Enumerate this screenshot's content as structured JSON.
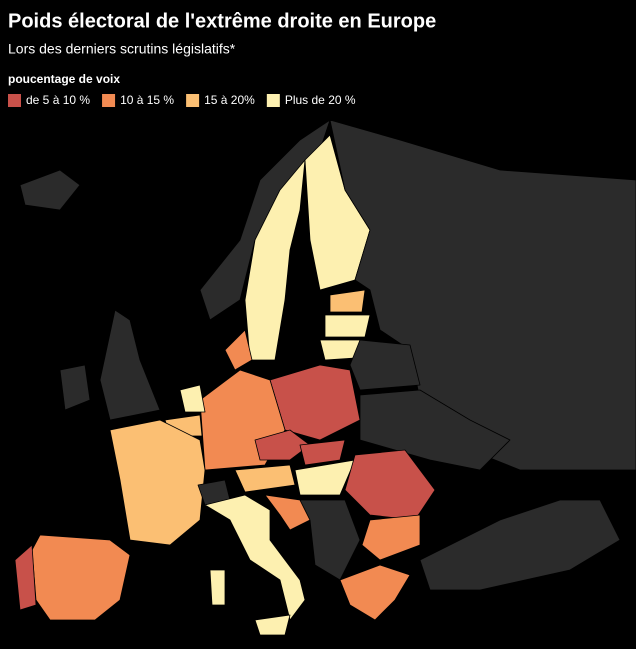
{
  "title": "Poids électoral de l'extrême droite en Europe",
  "subtitle": "Lors des derniers scrutins législatifs*",
  "legend": {
    "title": "poucentage de voix",
    "items": [
      {
        "label": "de 5 à 10 %",
        "color": "#c8514a"
      },
      {
        "label": "10 à 15 %",
        "color": "#f28a52"
      },
      {
        "label": "15 à 20%",
        "color": "#fbbf73"
      },
      {
        "label": "Plus de 20 %",
        "color": "#fdf0b0"
      }
    ]
  }
}
